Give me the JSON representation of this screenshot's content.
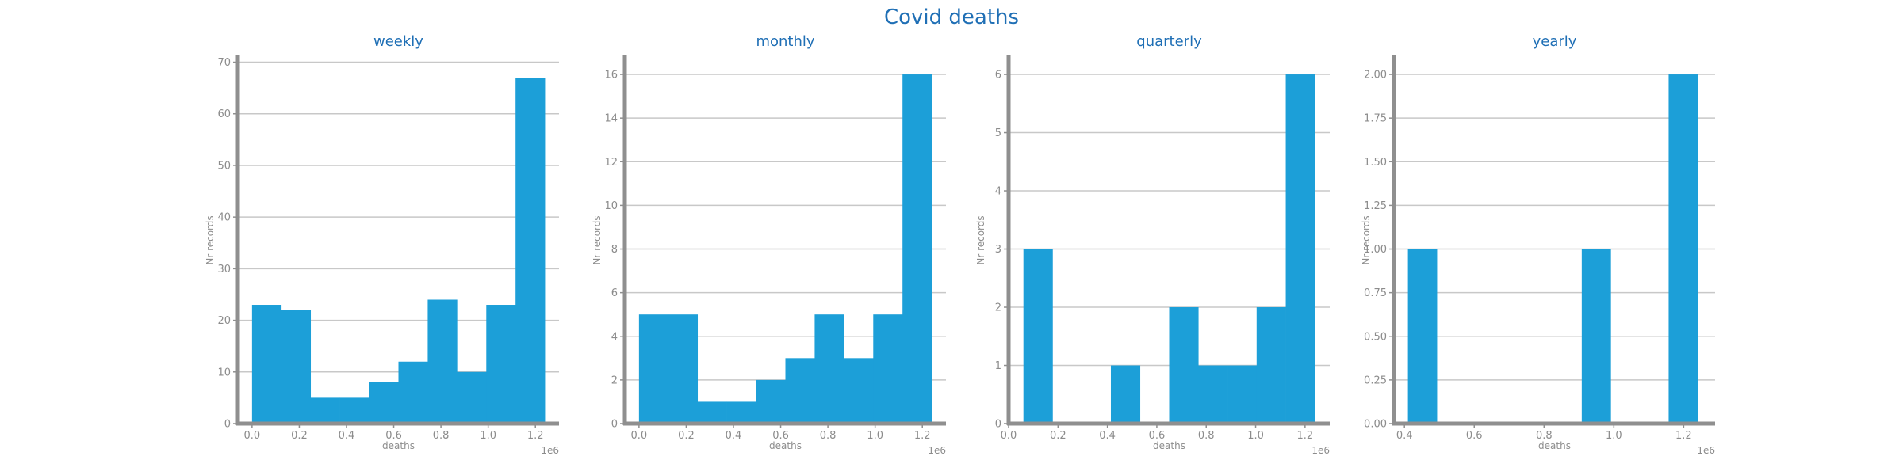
{
  "figure_title": "Covid deaths",
  "colors": {
    "bar": "#1c9fd8",
    "title": "#1f6fb5",
    "axis": "#8f8f8f",
    "grid": "#c8c8c8",
    "tick_text": "#8c8c8c"
  },
  "chart_data": [
    {
      "type": "bar",
      "title": "weekly",
      "xlabel": "deaths",
      "ylabel": "Nr records",
      "x_offset_label": "1e6",
      "xlim": [
        -0.06,
        1.3
      ],
      "ylim": [
        0,
        71
      ],
      "xticks": [
        0.0,
        0.2,
        0.4,
        0.6,
        0.8,
        1.0,
        1.2
      ],
      "xtick_labels": [
        "0.0",
        "0.2",
        "0.4",
        "0.6",
        "0.8",
        "1.0",
        "1.2"
      ],
      "yticks": [
        0,
        10,
        20,
        30,
        40,
        50,
        60,
        70
      ],
      "ytick_labels": [
        "0",
        "10",
        "20",
        "30",
        "40",
        "50",
        "60",
        "70"
      ],
      "grid": true,
      "bin_edges": [
        0.0,
        0.124,
        0.248,
        0.372,
        0.496,
        0.62,
        0.744,
        0.868,
        0.992,
        1.116,
        1.24
      ],
      "values": [
        23,
        22,
        5,
        5,
        8,
        12,
        24,
        10,
        23,
        67
      ]
    },
    {
      "type": "bar",
      "title": "monthly",
      "xlabel": "deaths",
      "ylabel": "Nr records",
      "x_offset_label": "1e6",
      "xlim": [
        -0.06,
        1.3
      ],
      "ylim": [
        0,
        16.8
      ],
      "xticks": [
        0.0,
        0.2,
        0.4,
        0.6,
        0.8,
        1.0,
        1.2
      ],
      "xtick_labels": [
        "0.0",
        "0.2",
        "0.4",
        "0.6",
        "0.8",
        "1.0",
        "1.2"
      ],
      "yticks": [
        0,
        2,
        4,
        6,
        8,
        10,
        12,
        14,
        16
      ],
      "ytick_labels": [
        "0",
        "2",
        "4",
        "6",
        "8",
        "10",
        "12",
        "14",
        "16"
      ],
      "grid": true,
      "bin_edges": [
        0.0,
        0.124,
        0.248,
        0.372,
        0.496,
        0.62,
        0.744,
        0.868,
        0.992,
        1.116,
        1.24
      ],
      "values": [
        5,
        5,
        1,
        1,
        2,
        3,
        5,
        3,
        5,
        16
      ]
    },
    {
      "type": "bar",
      "title": "quarterly",
      "xlabel": "deaths",
      "ylabel": "Nr records",
      "x_offset_label": "1e6",
      "xlim": [
        0.0,
        1.3
      ],
      "ylim": [
        0,
        6.3
      ],
      "xticks": [
        0.0,
        0.2,
        0.4,
        0.6,
        0.8,
        1.0,
        1.2
      ],
      "xtick_labels": [
        "0.0",
        "0.2",
        "0.4",
        "0.6",
        "0.8",
        "1.0",
        "1.2"
      ],
      "yticks": [
        0,
        1,
        2,
        3,
        4,
        5,
        6
      ],
      "ytick_labels": [
        "0",
        "1",
        "2",
        "3",
        "4",
        "5",
        "6"
      ],
      "grid": true,
      "bin_edges": [
        0.06,
        0.178,
        0.296,
        0.414,
        0.532,
        0.65,
        0.768,
        0.886,
        1.004,
        1.122,
        1.24
      ],
      "values": [
        3,
        0,
        0,
        1,
        0,
        2,
        1,
        1,
        2,
        6
      ]
    },
    {
      "type": "bar",
      "title": "yearly",
      "xlabel": "deaths",
      "ylabel": "Nr records",
      "x_offset_label": "1e6",
      "xlim": [
        0.37,
        1.29
      ],
      "ylim": [
        0,
        2.1
      ],
      "xticks": [
        0.4,
        0.6,
        0.8,
        1.0,
        1.2
      ],
      "xtick_labels": [
        "0.4",
        "0.6",
        "0.8",
        "1.0",
        "1.2"
      ],
      "yticks": [
        0.0,
        0.25,
        0.5,
        0.75,
        1.0,
        1.25,
        1.5,
        1.75,
        2.0
      ],
      "ytick_labels": [
        "0.00",
        "0.25",
        "0.50",
        "0.75",
        "1.00",
        "1.25",
        "1.50",
        "1.75",
        "2.00"
      ],
      "grid": true,
      "bin_edges": [
        0.41,
        0.493,
        0.576,
        0.659,
        0.742,
        0.825,
        0.908,
        0.991,
        1.074,
        1.157,
        1.24
      ],
      "values": [
        1,
        0,
        0,
        0,
        0,
        0,
        1,
        0,
        0,
        2
      ]
    }
  ]
}
